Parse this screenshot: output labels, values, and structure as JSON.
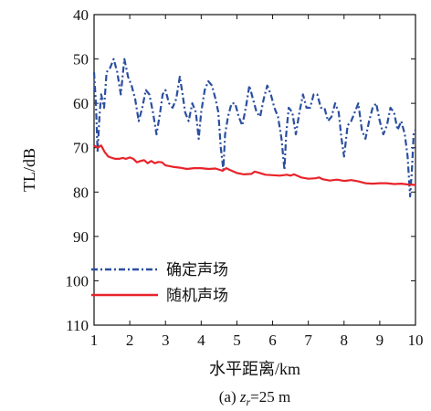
{
  "chart_data": {
    "type": "line",
    "title": "",
    "xlabel": "水平距离/km",
    "ylabel": "TL/dB",
    "caption": {
      "prefix": "(a) ",
      "var": "z",
      "sub": "r",
      "suffix": "=25 m"
    },
    "xlim": [
      1,
      10
    ],
    "ylim": [
      40,
      110
    ],
    "y_inverted": true,
    "xticks": [
      "1",
      "2",
      "3",
      "4",
      "5",
      "6",
      "7",
      "8",
      "9",
      "10"
    ],
    "yticks": [
      "40",
      "50",
      "60",
      "70",
      "80",
      "90",
      "100",
      "110"
    ],
    "grid": false,
    "legend_position": "bottom-left",
    "series": [
      {
        "name": "确定声场",
        "color": "#2b4fa0",
        "style": "dash-dot",
        "x": [
          1.0,
          1.05,
          1.1,
          1.15,
          1.2,
          1.28,
          1.35,
          1.45,
          1.55,
          1.65,
          1.75,
          1.85,
          1.95,
          2.05,
          2.15,
          2.25,
          2.35,
          2.45,
          2.55,
          2.65,
          2.75,
          2.85,
          2.92,
          3.0,
          3.1,
          3.2,
          3.3,
          3.4,
          3.48,
          3.55,
          3.65,
          3.75,
          3.85,
          3.93,
          4.0,
          4.1,
          4.2,
          4.3,
          4.4,
          4.48,
          4.55,
          4.62,
          4.67,
          4.75,
          4.85,
          4.95,
          5.05,
          5.15,
          5.25,
          5.35,
          5.45,
          5.55,
          5.65,
          5.75,
          5.85,
          5.95,
          6.05,
          6.15,
          6.25,
          6.33,
          6.38,
          6.45,
          6.55,
          6.65,
          6.75,
          6.85,
          6.95,
          7.05,
          7.15,
          7.25,
          7.35,
          7.45,
          7.55,
          7.65,
          7.75,
          7.85,
          7.93,
          8.0,
          8.1,
          8.2,
          8.3,
          8.4,
          8.5,
          8.6,
          8.7,
          8.8,
          8.9,
          9.0,
          9.1,
          9.2,
          9.3,
          9.4,
          9.5,
          9.6,
          9.7,
          9.78,
          9.85,
          9.9,
          9.95,
          10.0
        ],
        "y": [
          53,
          60,
          71,
          63,
          58,
          61,
          53,
          52,
          50,
          53,
          58,
          50,
          54,
          56,
          59,
          64,
          61,
          57,
          58,
          62,
          67,
          62,
          58,
          57,
          60,
          61,
          59,
          54,
          58,
          62,
          64,
          60,
          62,
          68,
          62,
          57,
          55,
          56,
          59,
          62,
          70,
          75,
          67,
          63,
          60,
          60,
          63,
          65,
          61,
          56,
          59,
          62,
          63,
          59,
          56,
          58,
          61,
          63,
          68,
          75,
          67,
          61,
          62,
          67,
          62,
          58,
          61,
          61,
          58,
          58,
          61,
          61,
          64,
          63,
          60,
          62,
          68,
          72,
          65,
          64,
          62,
          60,
          66,
          68,
          64,
          61,
          60,
          64,
          67,
          65,
          61,
          62,
          66,
          64,
          67,
          72,
          81,
          75,
          67,
          66
        ]
      },
      {
        "name": "随机声场",
        "color": "#e8232a",
        "style": "solid",
        "x": [
          1.0,
          1.1,
          1.2,
          1.3,
          1.4,
          1.5,
          1.6,
          1.7,
          1.8,
          1.9,
          2.0,
          2.1,
          2.2,
          2.3,
          2.4,
          2.5,
          2.6,
          2.7,
          2.8,
          2.9,
          3.0,
          3.2,
          3.4,
          3.6,
          3.8,
          4.0,
          4.2,
          4.4,
          4.6,
          4.7,
          4.8,
          5.0,
          5.2,
          5.4,
          5.5,
          5.6,
          5.8,
          6.0,
          6.2,
          6.4,
          6.5,
          6.6,
          6.8,
          7.0,
          7.2,
          7.3,
          7.4,
          7.6,
          7.8,
          8.0,
          8.2,
          8.4,
          8.6,
          8.8,
          9.0,
          9.2,
          9.4,
          9.6,
          9.8,
          10.0
        ],
        "y": [
          69.5,
          70,
          69.5,
          71,
          72,
          72.3,
          72.5,
          72.5,
          72.3,
          72.5,
          72.2,
          72.5,
          73.3,
          73,
          72.8,
          73.5,
          73,
          73.5,
          73.2,
          73.3,
          74,
          74.3,
          74.5,
          74.8,
          74.6,
          74.6,
          74.8,
          74.7,
          75.2,
          74.6,
          75,
          75.7,
          76,
          75.9,
          75.4,
          75.6,
          76.1,
          76.2,
          76.3,
          76.1,
          76.3,
          76,
          76.7,
          77,
          76.9,
          76.7,
          77.1,
          77.4,
          77.2,
          77.5,
          77.3,
          77.6,
          78,
          78.1,
          78,
          78,
          78.2,
          78.1,
          78.3,
          78.4
        ]
      }
    ]
  }
}
